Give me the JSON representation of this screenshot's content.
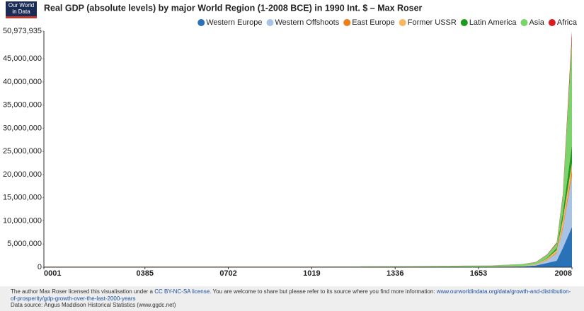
{
  "logo": {
    "line1": "Our World",
    "line2": "in Data"
  },
  "chart_data": {
    "type": "stacked-area",
    "title": "Real GDP (absolute levels) by major World Region (1-2008 BCE) in 1990 Int. $ – Max Roser",
    "x": [
      1,
      1000,
      1500,
      1600,
      1700,
      1820,
      1870,
      1913,
      1950,
      1973,
      2008
    ],
    "series": [
      {
        "name": "Western Europe",
        "color": "#2a72b8",
        "values": [
          14433,
          10165,
          44183,
          65602,
          83395,
          160145,
          367588,
          902341,
          1396188,
          4096456,
          8698000
        ]
      },
      {
        "name": "Western Offshoots",
        "color": "#a9c3e4",
        "values": [
          468,
          784,
          1120,
          1138,
          1109,
          13550,
          111573,
          582941,
          1635490,
          4058289,
          11000000
        ]
      },
      {
        "name": "East Europe",
        "color": "#f07d16",
        "values": [
          1956,
          2600,
          6696,
          9289,
          11393,
          23149,
          45448,
          121559,
          185023,
          550757,
          1300000
        ]
      },
      {
        "name": "Former USSR",
        "color": "#f9b562",
        "values": [
          1560,
          2840,
          8458,
          11426,
          16196,
          37678,
          83646,
          232351,
          510243,
          1513070,
          1500000
        ]
      },
      {
        "name": "Latin America",
        "color": "#1d9a1d",
        "values": [
          2240,
          4560,
          7288,
          3763,
          6346,
          14921,
          27494,
          119883,
          415907,
          1389459,
          3900000
        ]
      },
      {
        "name": "Asia",
        "color": "#7bd36c",
        "values": [
          77476,
          78930,
          161544,
          218800,
          228255,
          411754,
          422186,
          681564,
          968861,
          3386000,
          22875935
        ]
      },
      {
        "name": "Africa",
        "color": "#d81c1f",
        "values": [
          7013,
          13720,
          18400,
          20901,
          25000,
          31266,
          45234,
          79486,
          203131,
          549993,
          1700000
        ]
      }
    ],
    "xlim": [
      1,
      2008
    ],
    "xticks": [
      {
        "value": 1,
        "label": "0001"
      },
      {
        "value": 385,
        "label": "0385"
      },
      {
        "value": 702,
        "label": "0702"
      },
      {
        "value": 1019,
        "label": "1019"
      },
      {
        "value": 1336,
        "label": "1336"
      },
      {
        "value": 1653,
        "label": "1653"
      },
      {
        "value": 2008,
        "label": "2008"
      }
    ],
    "ylim": [
      0,
      50973935
    ],
    "yticks": [
      0,
      {
        "value": 5000000,
        "label": "5,000,000"
      },
      {
        "value": 10000000,
        "label": "10,000,000"
      },
      {
        "value": 15000000,
        "label": "15,000,000"
      },
      {
        "value": 20000000,
        "label": "20,000,000"
      },
      {
        "value": 25000000,
        "label": "25,000,000"
      },
      {
        "value": 30000000,
        "label": "30,000,000"
      },
      {
        "value": 35000000,
        "label": "35,000,000"
      },
      {
        "value": 40000000,
        "label": "40,000,000"
      },
      {
        "value": 45000000,
        "label": "45,000,000"
      },
      {
        "value": 50973935,
        "label": "50,973,935"
      }
    ],
    "legend": "top-right"
  },
  "footer": {
    "text1": "The author Max Roser licensed this visualisation under a ",
    "license": "CC BY-NC-SA license",
    "text2": ". You are welcome to share but please refer to its source where you find more information: ",
    "url": "www.ourworldindata.org/data/growth-and-distribution-of-prosperity/gdp-growth-over-the-last-2000-years",
    "source": "Data source: Angus Maddison Historical Statistics (www.ggdc.net)"
  }
}
